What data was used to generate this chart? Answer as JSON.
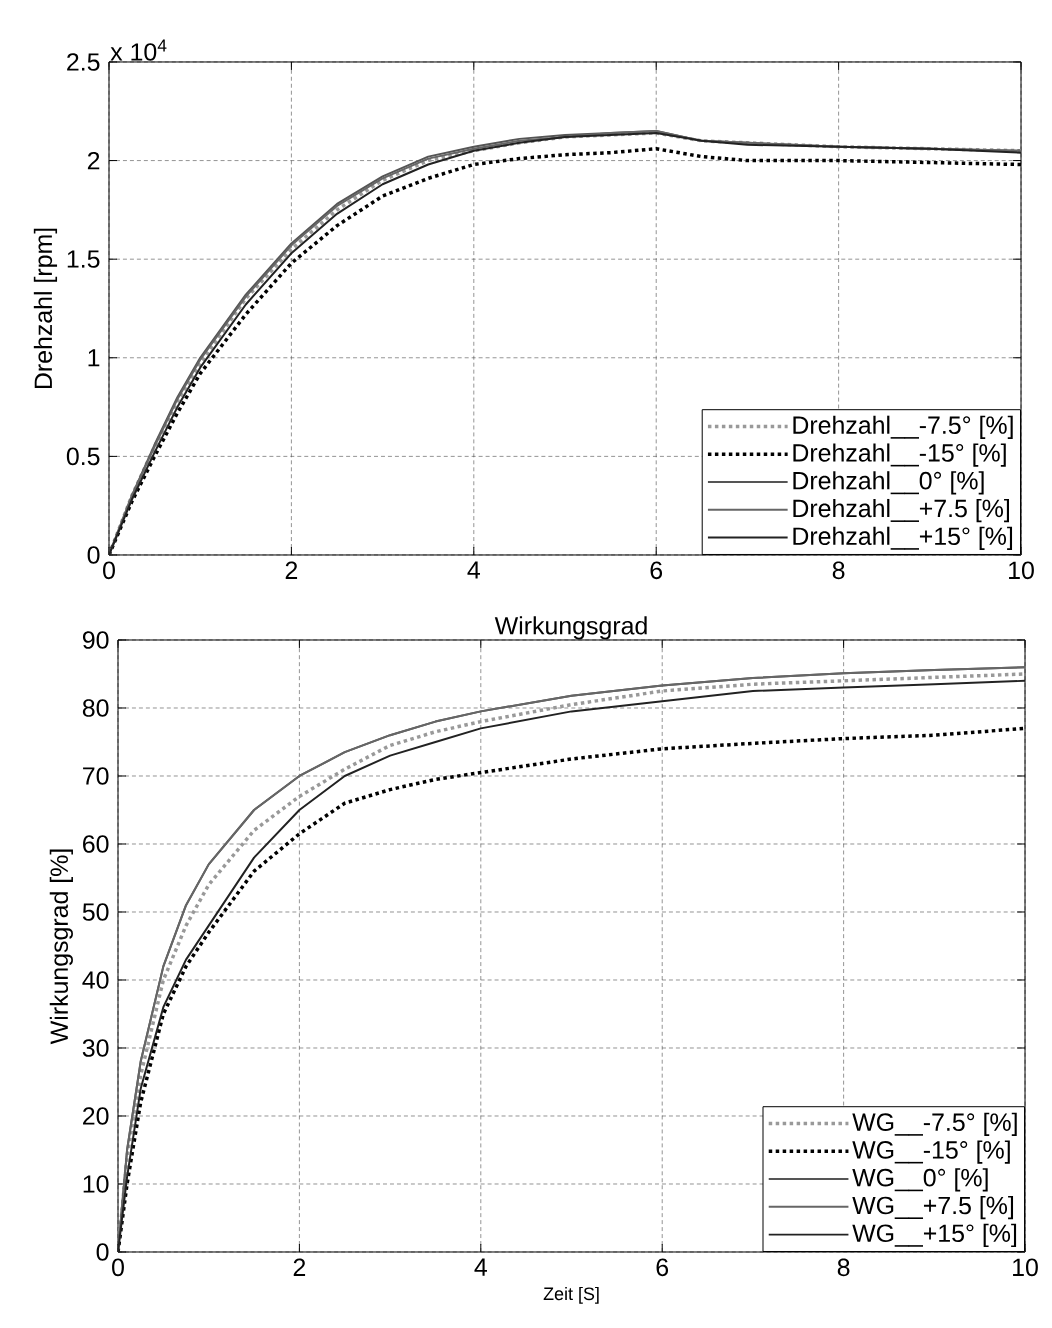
{
  "chart_data": [
    {
      "type": "line",
      "ylabel": "Drehzahl [rpm]",
      "annotations": [
        "x 10$^{4}$"
      ],
      "xlim": [
        0,
        10
      ],
      "ylim": [
        0,
        2.5
      ],
      "xticks": [
        0,
        2,
        4,
        6,
        8,
        10
      ],
      "yticks": [
        0,
        0.5,
        1,
        1.5,
        2,
        2.5
      ],
      "grid": true,
      "legend": "bottom right",
      "x": [
        0,
        0.25,
        0.5,
        0.75,
        1,
        1.5,
        2,
        2.5,
        3,
        3.5,
        4,
        4.5,
        5,
        5.5,
        6,
        6.5,
        7,
        8,
        9,
        10
      ],
      "series": [
        {
          "name": "Drehzahl__-7.5° [%]",
          "color": "#999999",
          "line_style": "dotted",
          "values": [
            0,
            0.3,
            0.55,
            0.78,
            0.97,
            1.3,
            1.55,
            1.75,
            1.9,
            2.0,
            2.05,
            2.09,
            2.12,
            2.13,
            2.14,
            2.1,
            2.09,
            2.07,
            2.06,
            2.05
          ]
        },
        {
          "name": "Drehzahl__-15° [%]",
          "color": "#000000",
          "line_style": "dotted",
          "values": [
            0,
            0.27,
            0.5,
            0.72,
            0.92,
            1.22,
            1.48,
            1.67,
            1.82,
            1.91,
            1.98,
            2.01,
            2.03,
            2.04,
            2.06,
            2.02,
            2.0,
            2.0,
            1.99,
            1.98
          ]
        },
        {
          "name": "Drehzahl__0° [%]",
          "color": "#555555",
          "line_style": "solid",
          "values": [
            0,
            0.3,
            0.56,
            0.8,
            1.0,
            1.32,
            1.58,
            1.78,
            1.92,
            2.02,
            2.07,
            2.11,
            2.13,
            2.14,
            2.15,
            2.1,
            2.09,
            2.07,
            2.06,
            2.05
          ]
        },
        {
          "name": "Drehzahl__+7.5 [%]",
          "color": "#666666",
          "line_style": "solid",
          "values": [
            0,
            0.3,
            0.55,
            0.79,
            0.99,
            1.31,
            1.57,
            1.77,
            1.91,
            2.01,
            2.06,
            2.1,
            2.12,
            2.14,
            2.15,
            2.1,
            2.09,
            2.07,
            2.06,
            2.05
          ]
        },
        {
          "name": "Drehzahl__+15° [%]",
          "color": "#222222",
          "line_style": "solid",
          "values": [
            0,
            0.28,
            0.52,
            0.75,
            0.95,
            1.27,
            1.53,
            1.73,
            1.88,
            1.98,
            2.05,
            2.09,
            2.12,
            2.13,
            2.14,
            2.1,
            2.08,
            2.07,
            2.06,
            2.04
          ]
        }
      ]
    },
    {
      "type": "line",
      "title": "Wirkungsgrad",
      "xlabel": "Zeit [S]",
      "ylabel": "Wirkungsgrad [%]",
      "xlim": [
        0,
        10
      ],
      "ylim": [
        0,
        90
      ],
      "xticks": [
        0,
        2,
        4,
        6,
        8,
        10
      ],
      "yticks": [
        0,
        10,
        20,
        30,
        40,
        50,
        60,
        70,
        80,
        90
      ],
      "grid": true,
      "legend": "bottom right",
      "x": [
        0,
        0.1,
        0.25,
        0.5,
        0.75,
        1,
        1.5,
        2,
        2.5,
        3,
        3.5,
        4,
        5,
        6,
        7,
        8,
        9,
        10
      ],
      "series": [
        {
          "name": "WG__-7.5° [%]",
          "color": "#999999",
          "line_style": "dotted",
          "values": [
            0,
            14,
            26,
            40,
            48,
            54,
            62,
            67,
            71,
            74.5,
            76.5,
            78,
            80.5,
            82.5,
            83.5,
            84,
            84.5,
            85
          ]
        },
        {
          "name": "WG__-15° [%]",
          "color": "#000000",
          "line_style": "dotted",
          "values": [
            0,
            10,
            22,
            35,
            42,
            47,
            56,
            61.5,
            66,
            68,
            69.5,
            70.5,
            72.5,
            74,
            74.8,
            75.5,
            76,
            77
          ]
        },
        {
          "name": "WG__0° [%]",
          "color": "#555555",
          "line_style": "solid",
          "values": [
            0,
            15,
            28,
            42,
            51,
            57,
            65,
            70,
            73.5,
            76,
            78,
            79.5,
            81.8,
            83.3,
            84.4,
            85.1,
            85.6,
            86
          ]
        },
        {
          "name": "WG__+7.5 [%]",
          "color": "#666666",
          "line_style": "solid",
          "values": [
            0,
            15,
            28,
            42,
            51,
            57,
            65,
            70,
            73.5,
            76,
            78,
            79.5,
            81.8,
            83.3,
            84.4,
            85.1,
            85.6,
            86
          ]
        },
        {
          "name": "WG__+15° [%]",
          "color": "#222222",
          "line_style": "solid",
          "values": [
            0,
            11,
            24,
            36,
            43,
            48,
            58,
            65,
            70,
            73,
            75,
            77,
            79.5,
            81,
            82.5,
            83,
            83.5,
            84
          ]
        }
      ]
    }
  ]
}
